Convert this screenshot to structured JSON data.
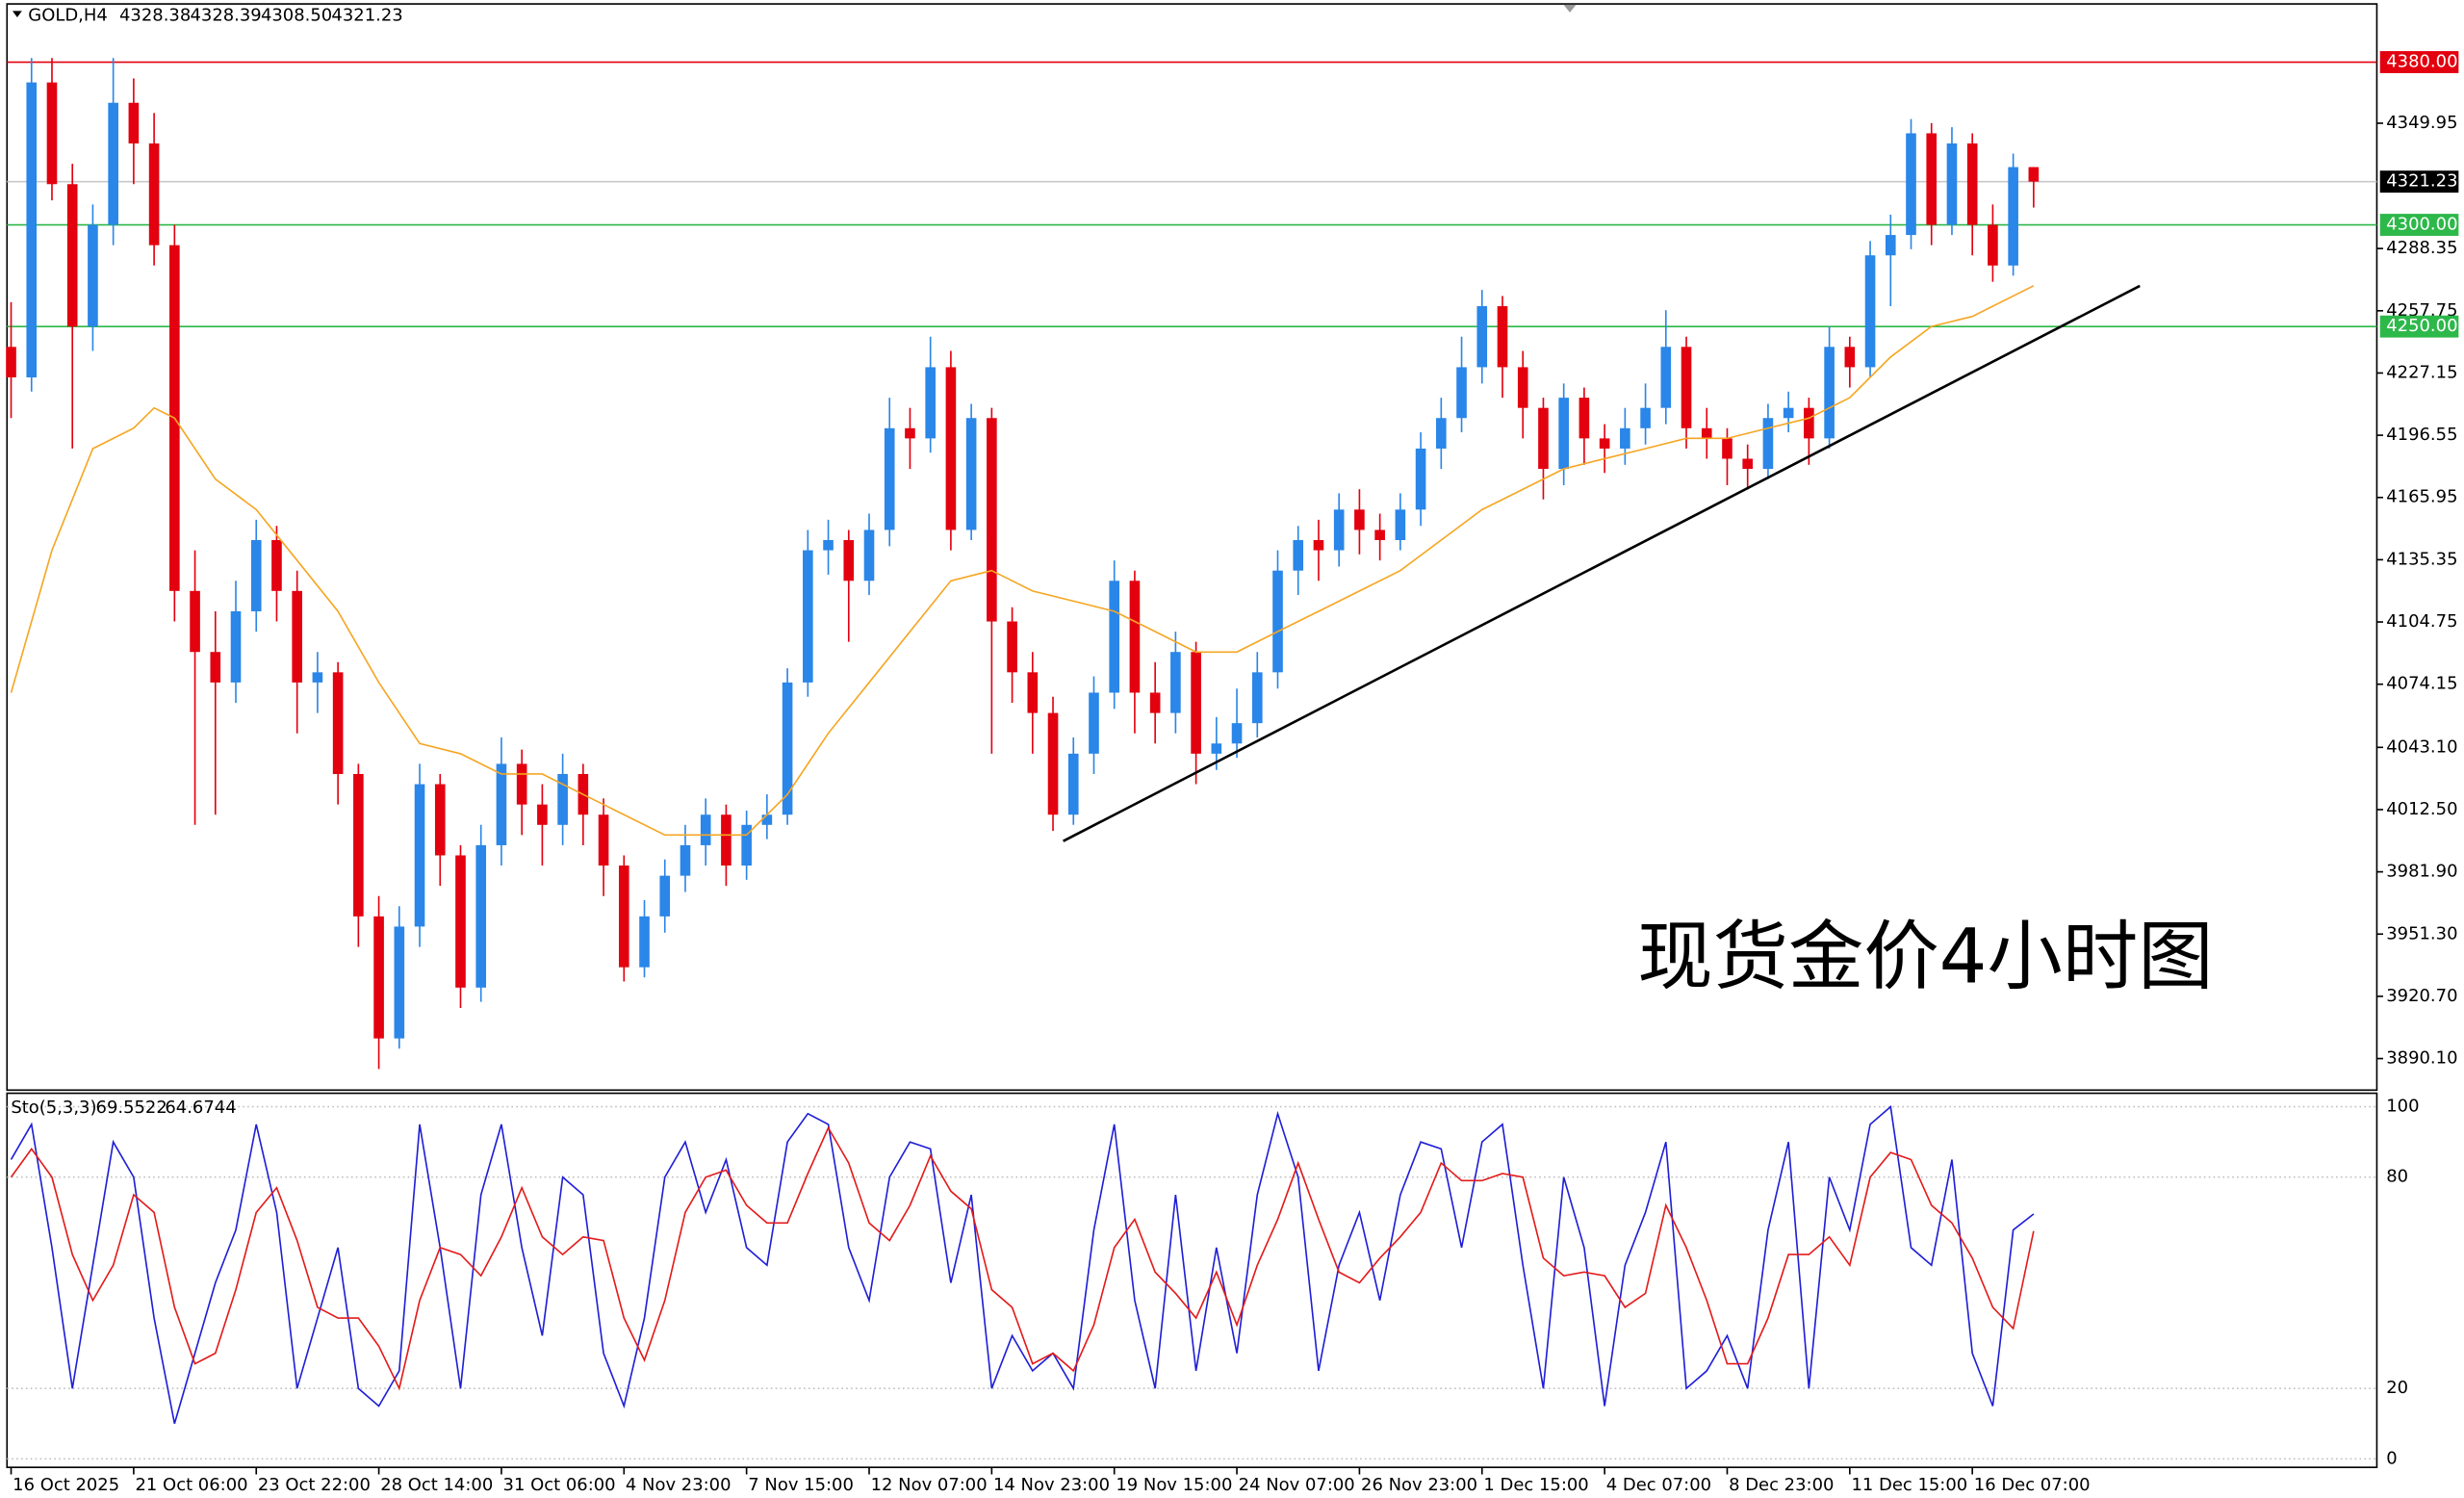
{
  "chart_data": [
    {
      "type": "candlestick",
      "title": "GOLD,H4",
      "header_values": [
        "4328.38",
        "4328.39",
        "4308.50",
        "4321.23"
      ],
      "bull_color": "#2a86e8",
      "bear_color": "#e3000f",
      "ylim": [
        3874.6,
        4408.6
      ],
      "yticks": [
        {
          "value": 3890.1,
          "label": "3890.10"
        },
        {
          "value": 3920.7,
          "label": "3920.70"
        },
        {
          "value": 3951.3,
          "label": "3951.30"
        },
        {
          "value": 3981.9,
          "label": "3981.90"
        },
        {
          "value": 4012.5,
          "label": "4012.50"
        },
        {
          "value": 4043.1,
          "label": "4043.10"
        },
        4074.15,
        4104.75,
        4135.35,
        4165.95,
        4196.55,
        4227.15,
        4257.75,
        4288.35,
        4349.95
      ],
      "xlim": [
        -0.2,
        115.8
      ],
      "xticks": [
        {
          "value": 0,
          "label": "16 Oct 2025"
        },
        {
          "value": 6,
          "label": "21 Oct 06:00"
        },
        {
          "value": 12,
          "label": "23 Oct 22:00"
        },
        {
          "value": 18,
          "label": "28 Oct 14:00"
        },
        {
          "value": 24,
          "label": "31 Oct 06:00"
        },
        {
          "value": 30,
          "label": "4 Nov 23:00"
        },
        {
          "value": 36,
          "label": "7 Nov 15:00"
        },
        {
          "value": 42,
          "label": "12 Nov 07:00"
        },
        {
          "value": 48,
          "label": "14 Nov 23:00"
        },
        {
          "value": 54,
          "label": "19 Nov 15:00"
        },
        {
          "value": 60,
          "label": "24 Nov 07:00"
        },
        {
          "value": 66,
          "label": "26 Nov 23:00"
        },
        {
          "value": 72,
          "label": "1 Dec 15:00"
        },
        {
          "value": 78,
          "label": "4 Dec 07:00"
        },
        {
          "value": 84,
          "label": "8 Dec 23:00"
        },
        {
          "value": 90,
          "label": "11 Dec 15:00"
        },
        {
          "value": 96,
          "label": "16 Dec 07:00"
        }
      ],
      "ohlc": [
        [
          4240,
          4262,
          4205,
          4225
        ],
        [
          4225,
          4382,
          4218,
          4370
        ],
        [
          4370,
          4382,
          4312,
          4320
        ],
        [
          4320,
          4330,
          4190,
          4250
        ],
        [
          4250,
          4310,
          4238,
          4300
        ],
        [
          4300,
          4382,
          4290,
          4360
        ],
        [
          4360,
          4372,
          4320,
          4340
        ],
        [
          4340,
          4355,
          4280,
          4290
        ],
        [
          4290,
          4300,
          4105,
          4120
        ],
        [
          4120,
          4140,
          4005,
          4090
        ],
        [
          4090,
          4110,
          4010,
          4075
        ],
        [
          4075,
          4125,
          4065,
          4110
        ],
        [
          4110,
          4155,
          4100,
          4145
        ],
        [
          4145,
          4152,
          4105,
          4120
        ],
        [
          4120,
          4130,
          4050,
          4075
        ],
        [
          4075,
          4090,
          4060,
          4080
        ],
        [
          4080,
          4085,
          4015,
          4030
        ],
        [
          4030,
          4035,
          3945,
          3960
        ],
        [
          3960,
          3970,
          3885,
          3900
        ],
        [
          3900,
          3965,
          3895,
          3955
        ],
        [
          3955,
          4035,
          3945,
          4025
        ],
        [
          4025,
          4030,
          3975,
          3990
        ],
        [
          3990,
          3995,
          3915,
          3925
        ],
        [
          3925,
          4005,
          3918,
          3995
        ],
        [
          3995,
          4048,
          3985,
          4035
        ],
        [
          4035,
          4042,
          4000,
          4015
        ],
        [
          4015,
          4025,
          3985,
          4005
        ],
        [
          4005,
          4040,
          3995,
          4030
        ],
        [
          4030,
          4035,
          3995,
          4010
        ],
        [
          4010,
          4018,
          3970,
          3985
        ],
        [
          3985,
          3990,
          3928,
          3935
        ],
        [
          3935,
          3968,
          3930,
          3960
        ],
        [
          3960,
          3988,
          3952,
          3980
        ],
        [
          3980,
          4005,
          3972,
          3995
        ],
        [
          3995,
          4018,
          3985,
          4010
        ],
        [
          4010,
          4015,
          3975,
          3985
        ],
        [
          3985,
          4012,
          3978,
          4005
        ],
        [
          4005,
          4020,
          3998,
          4010
        ],
        [
          4010,
          4082,
          4005,
          4075
        ],
        [
          4075,
          4150,
          4068,
          4140
        ],
        [
          4140,
          4155,
          4128,
          4145
        ],
        [
          4145,
          4150,
          4095,
          4125
        ],
        [
          4125,
          4158,
          4118,
          4150
        ],
        [
          4150,
          4215,
          4142,
          4200
        ],
        [
          4200,
          4210,
          4180,
          4195
        ],
        [
          4195,
          4245,
          4188,
          4230
        ],
        [
          4230,
          4238,
          4140,
          4150
        ],
        [
          4150,
          4212,
          4145,
          4205
        ],
        [
          4205,
          4210,
          4040,
          4105
        ],
        [
          4105,
          4112,
          4065,
          4080
        ],
        [
          4080,
          4090,
          4040,
          4060
        ],
        [
          4060,
          4068,
          4002,
          4010
        ],
        [
          4010,
          4048,
          4005,
          4040
        ],
        [
          4040,
          4078,
          4030,
          4070
        ],
        [
          4070,
          4135,
          4062,
          4125
        ],
        [
          4125,
          4130,
          4050,
          4070
        ],
        [
          4070,
          4085,
          4045,
          4060
        ],
        [
          4060,
          4100,
          4050,
          4090
        ],
        [
          4090,
          4095,
          4025,
          4040
        ],
        [
          4040,
          4058,
          4032,
          4045
        ],
        [
          4045,
          4072,
          4038,
          4055
        ],
        [
          4055,
          4090,
          4048,
          4080
        ],
        [
          4080,
          4140,
          4072,
          4130
        ],
        [
          4130,
          4152,
          4118,
          4145
        ],
        [
          4145,
          4155,
          4125,
          4140
        ],
        [
          4140,
          4168,
          4132,
          4160
        ],
        [
          4160,
          4170,
          4138,
          4150
        ],
        [
          4150,
          4158,
          4135,
          4145
        ],
        [
          4145,
          4168,
          4140,
          4160
        ],
        [
          4160,
          4198,
          4152,
          4190
        ],
        [
          4190,
          4215,
          4180,
          4205
        ],
        [
          4205,
          4245,
          4198,
          4230
        ],
        [
          4230,
          4268,
          4222,
          4260
        ],
        [
          4260,
          4265,
          4215,
          4230
        ],
        [
          4230,
          4238,
          4195,
          4210
        ],
        [
          4210,
          4215,
          4165,
          4180
        ],
        [
          4180,
          4222,
          4172,
          4215
        ],
        [
          4215,
          4220,
          4182,
          4195
        ],
        [
          4195,
          4202,
          4178,
          4190
        ],
        [
          4190,
          4210,
          4182,
          4200
        ],
        [
          4200,
          4222,
          4192,
          4210
        ],
        [
          4210,
          4258,
          4202,
          4240
        ],
        [
          4240,
          4245,
          4190,
          4200
        ],
        [
          4200,
          4210,
          4185,
          4195
        ],
        [
          4195,
          4200,
          4172,
          4185
        ],
        [
          4185,
          4192,
          4170,
          4180
        ],
        [
          4180,
          4212,
          4175,
          4205
        ],
        [
          4205,
          4218,
          4198,
          4210
        ],
        [
          4210,
          4215,
          4182,
          4195
        ],
        [
          4195,
          4250,
          4190,
          4240
        ],
        [
          4240,
          4245,
          4220,
          4230
        ],
        [
          4230,
          4292,
          4225,
          4285
        ],
        [
          4285,
          4305,
          4260,
          4295
        ],
        [
          4295,
          4352,
          4288,
          4345
        ],
        [
          4345,
          4350,
          4290,
          4300
        ],
        [
          4300,
          4348,
          4295,
          4340
        ],
        [
          4340,
          4345,
          4285,
          4300
        ],
        [
          4300,
          4310,
          4272,
          4280
        ],
        [
          4280,
          4335,
          4275,
          4328.38
        ],
        [
          4328.38,
          4328.39,
          4308.5,
          4321.23
        ]
      ],
      "ma": {
        "color": "#f5a623",
        "x": [
          0,
          2,
          4,
          6,
          7,
          8,
          10,
          12,
          14,
          16,
          18,
          20,
          22,
          24,
          26,
          28,
          30,
          32,
          34,
          36,
          38,
          40,
          42,
          44,
          46,
          48,
          50,
          52,
          54,
          56,
          58,
          60,
          62,
          64,
          66,
          68,
          70,
          72,
          74,
          76,
          78,
          80,
          82,
          84,
          86,
          88,
          90,
          92,
          94,
          96,
          98,
          99
        ],
        "values": [
          4070,
          4140,
          4190,
          4200,
          4210,
          4205,
          4175,
          4160,
          4135,
          4110,
          4075,
          4045,
          4040,
          4030,
          4030,
          4020,
          4010,
          4000,
          4000,
          4000,
          4020,
          4050,
          4075,
          4100,
          4125,
          4130,
          4120,
          4115,
          4110,
          4100,
          4090,
          4090,
          4100,
          4110,
          4120,
          4130,
          4145,
          4160,
          4170,
          4180,
          4185,
          4190,
          4195,
          4195,
          4200,
          4205,
          4215,
          4235,
          4250,
          4255,
          4265,
          4270
        ]
      },
      "trendline": {
        "color": "#000000",
        "x": [
          51.5,
          104.2
        ],
        "y": [
          3997,
          4270
        ]
      },
      "levels": [
        {
          "value": 4380,
          "label": "4380.00",
          "color": "#e3000f"
        },
        {
          "value": 4321.23,
          "label": "4321.23",
          "color": "#000000"
        },
        {
          "value": 4300,
          "label": "4300.00",
          "color": "#2db84a"
        },
        {
          "value": 4250,
          "label": "4250.00",
          "color": "#2db84a"
        }
      ],
      "annotation": "现货金价4小时图"
    },
    {
      "type": "stochastic",
      "title": "Sto(5,3,3)",
      "ylim": [
        -2.2,
        103.6
      ],
      "yticks": [
        0,
        20,
        80,
        100
      ],
      "series": [
        {
          "color": "#1f1fd6",
          "values": [
            85,
            95,
            60,
            20,
            55,
            90,
            80,
            40,
            10,
            30,
            50,
            65,
            95,
            70,
            20,
            40,
            60,
            20,
            15,
            25,
            95,
            60,
            20,
            75,
            95,
            60,
            35,
            80,
            75,
            30,
            15,
            40,
            80,
            90,
            70,
            85,
            60,
            55,
            90,
            98,
            95,
            60,
            45,
            80,
            90,
            88,
            50,
            75,
            20,
            35,
            25,
            30,
            20,
            65,
            95,
            45,
            20,
            75,
            25,
            60,
            30,
            75,
            98,
            80,
            25,
            55,
            70,
            45,
            75,
            90,
            88,
            60,
            90,
            95,
            55,
            20,
            80,
            60,
            15,
            55,
            70,
            90,
            20,
            25,
            35,
            20,
            65,
            90,
            20,
            80,
            65,
            95,
            100,
            60,
            55,
            85,
            30,
            15,
            65,
            69.5522
          ]
        },
        {
          "color": "#e31b1b",
          "values": [
            80,
            88,
            80,
            58,
            45,
            55,
            75,
            70,
            43,
            27,
            30,
            48,
            70,
            77,
            62,
            43,
            40,
            40,
            32,
            20,
            45,
            60,
            58,
            52,
            63,
            77,
            63,
            58,
            63,
            62,
            40,
            28,
            45,
            70,
            80,
            82,
            72,
            67,
            67,
            81,
            94,
            84,
            67,
            62,
            72,
            86,
            76,
            71,
            48,
            43,
            27,
            30,
            25,
            38,
            60,
            68,
            53,
            47,
            40,
            53,
            38,
            55,
            68,
            84,
            68,
            53,
            50,
            57,
            63,
            70,
            84,
            79,
            79,
            81,
            80,
            57,
            52,
            53,
            52,
            43,
            47,
            72,
            60,
            45,
            27,
            27,
            40,
            58,
            58,
            63,
            55,
            80,
            87,
            85,
            72,
            67,
            57,
            43,
            37,
            64.6744
          ]
        }
      ]
    }
  ]
}
